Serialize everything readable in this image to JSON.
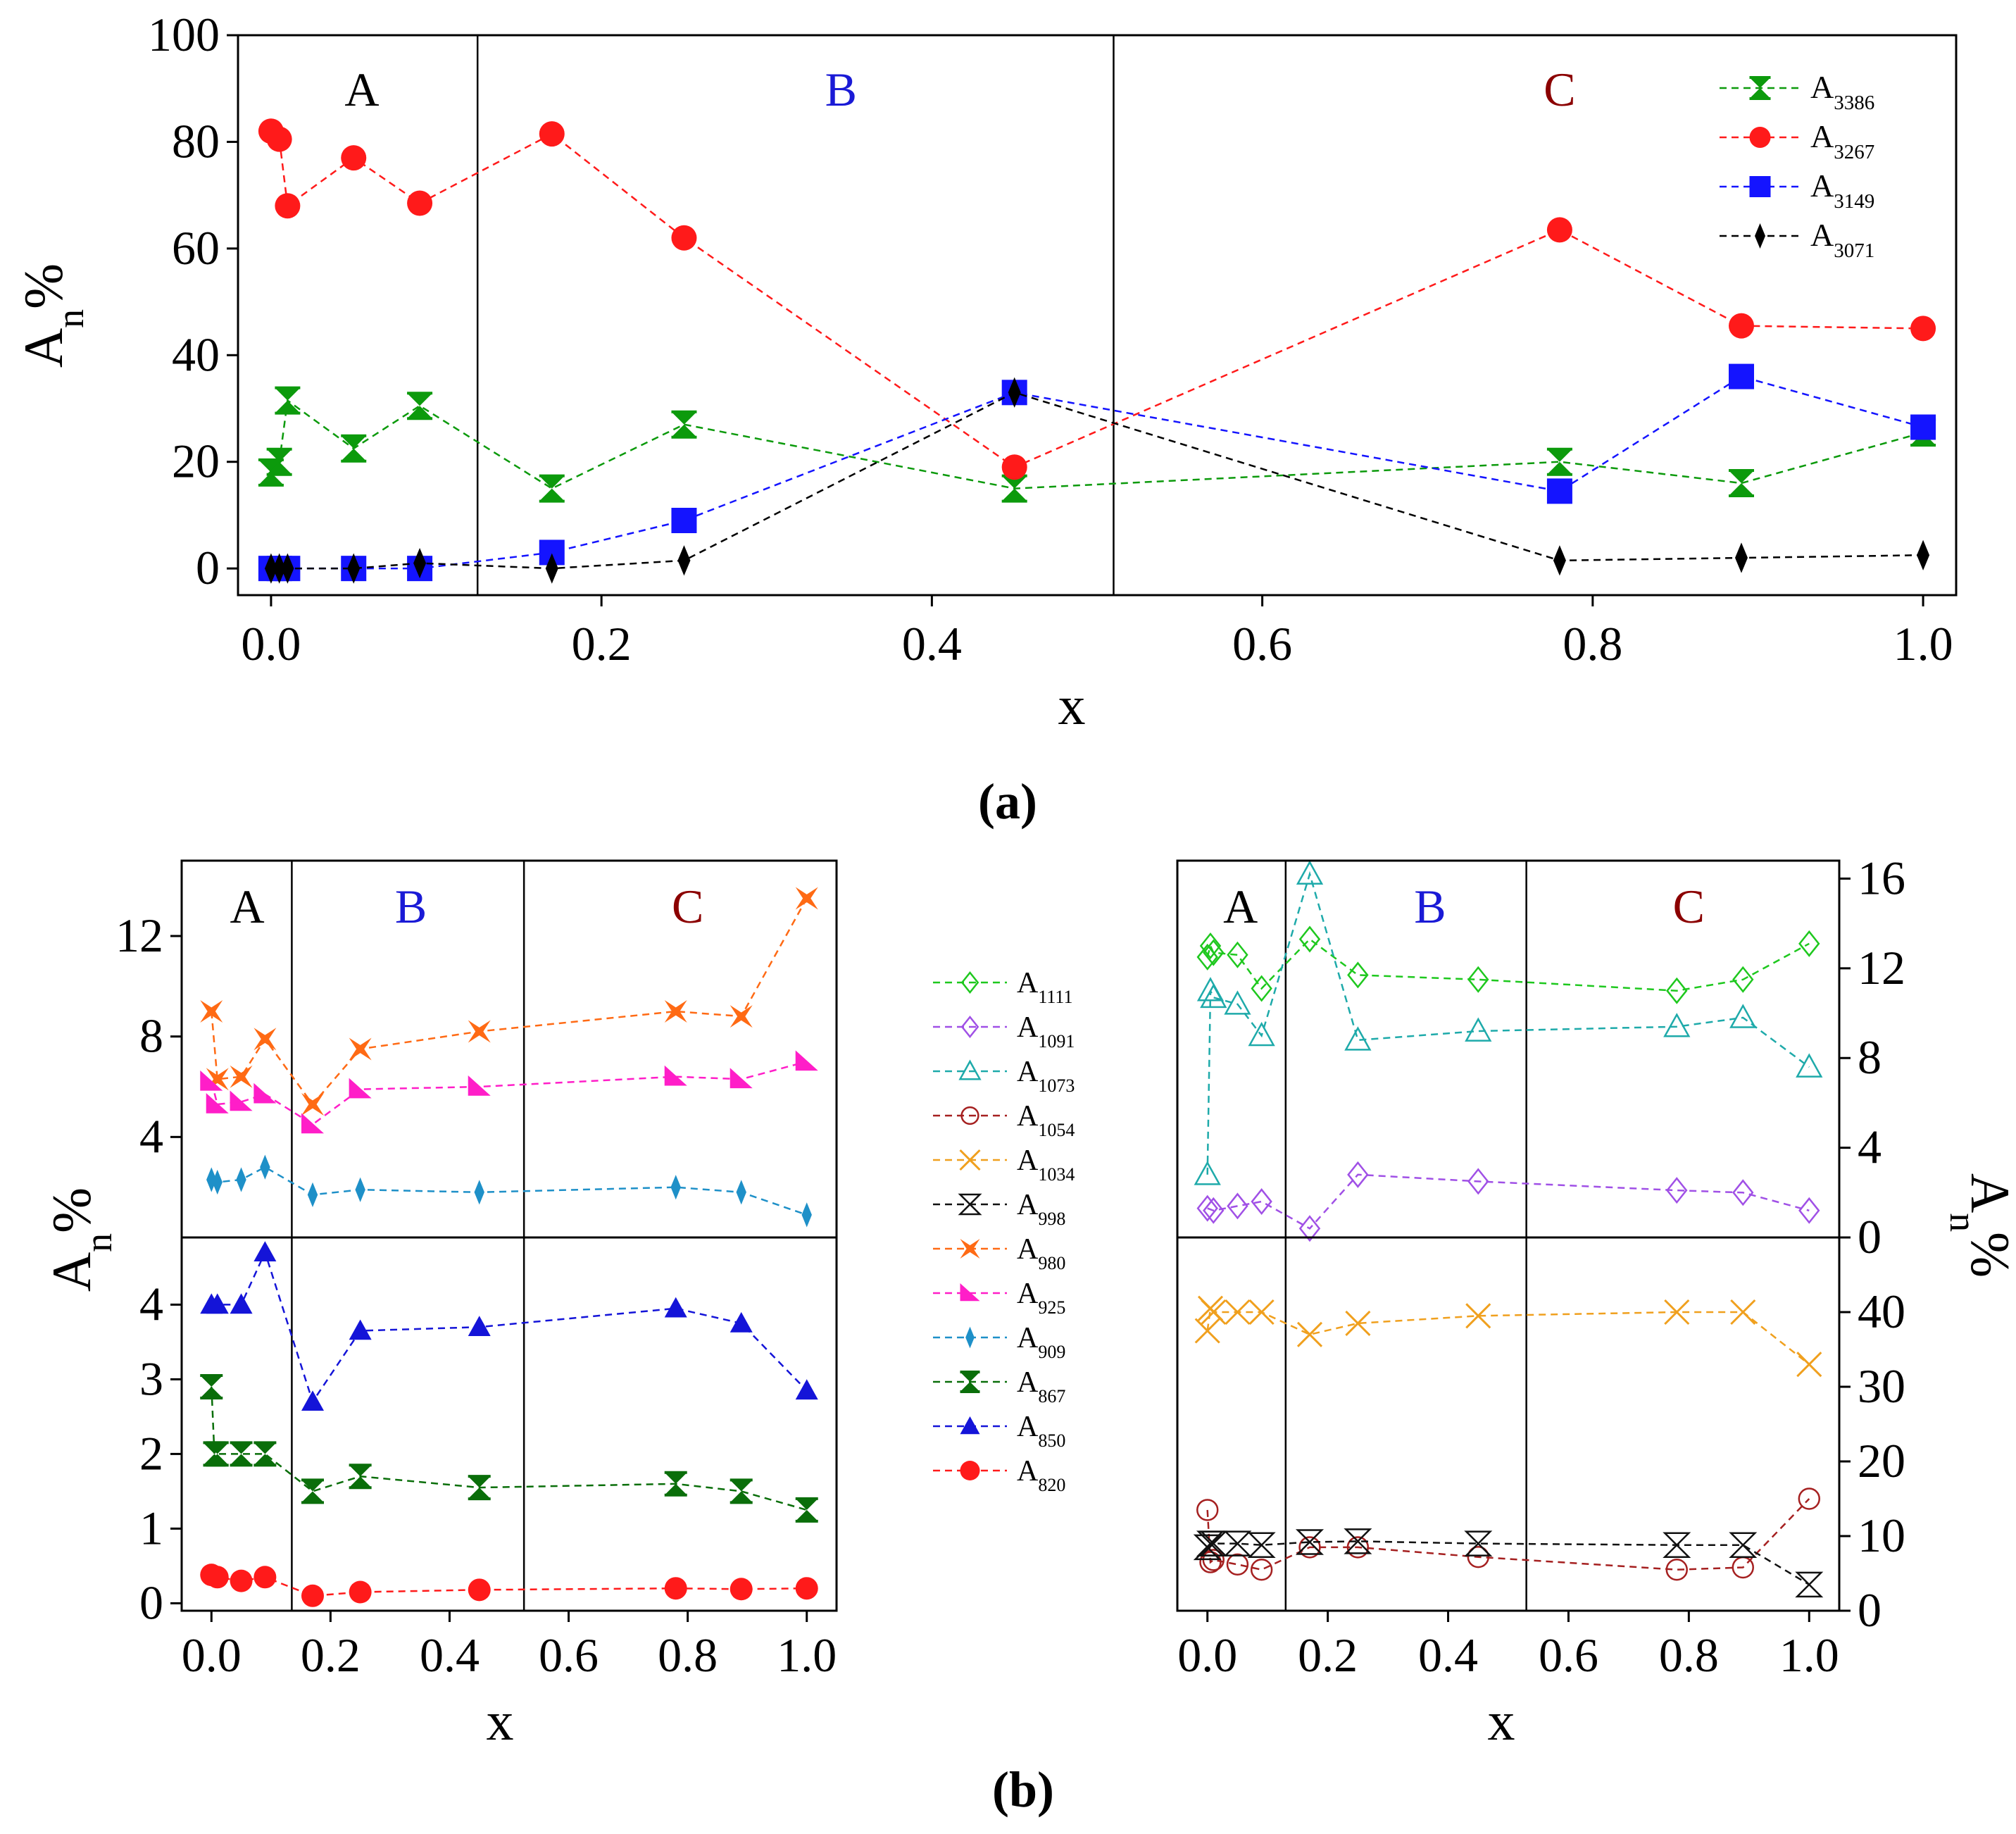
{
  "captions": {
    "a": "(a)",
    "b": "(b)"
  },
  "chart_data": [
    {
      "id": "a",
      "type": "line",
      "xlabel": "x",
      "ylabel": "A",
      "ylabel_sub": "n",
      "ylabel_suffix": "%",
      "xlim": [
        -0.02,
        1.02
      ],
      "ylim": [
        -5,
        100
      ],
      "xticks": [
        0.0,
        0.2,
        0.4,
        0.6,
        0.8,
        1.0
      ],
      "xtick_labels": [
        "0.0",
        "0.2",
        "0.4",
        "0.6",
        "0.8",
        "1.0"
      ],
      "yticks": [
        0,
        20,
        40,
        60,
        80,
        100
      ],
      "ytick_labels": [
        "0",
        "20",
        "40",
        "60",
        "80",
        "100"
      ],
      "dividers": [
        0.125,
        0.51
      ],
      "regions": [
        {
          "label": "A",
          "x": 0.055,
          "color": "#000000"
        },
        {
          "label": "B",
          "x": 0.345,
          "color": "#1a1ad6"
        },
        {
          "label": "C",
          "x": 0.78,
          "color": "#8b0000"
        }
      ],
      "legend_position": "top-right",
      "series": [
        {
          "name": "A",
          "sub": "3386",
          "color": "#0c9a0c",
          "marker": "hourglass",
          "x": [
            0.0,
            0.005,
            0.01,
            0.05,
            0.09,
            0.17,
            0.25,
            0.45,
            0.78,
            0.89,
            1.0
          ],
          "y": [
            18,
            20,
            31.5,
            22.5,
            30.5,
            15,
            27,
            15,
            20,
            16,
            25.5
          ]
        },
        {
          "name": "A",
          "sub": "3267",
          "color": "#ff1a1a",
          "marker": "circle",
          "x": [
            0.0,
            0.005,
            0.01,
            0.05,
            0.09,
            0.17,
            0.25,
            0.45,
            0.78,
            0.89,
            1.0
          ],
          "y": [
            82,
            80.5,
            68,
            77,
            68.5,
            81.5,
            62,
            19,
            63.5,
            45.5,
            45
          ]
        },
        {
          "name": "A",
          "sub": "3149",
          "color": "#1414ff",
          "marker": "square",
          "x": [
            0.0,
            0.005,
            0.01,
            0.05,
            0.09,
            0.17,
            0.25,
            0.45,
            0.78,
            0.89,
            1.0
          ],
          "y": [
            0,
            0,
            0,
            0,
            0,
            3,
            9,
            33,
            14.5,
            36,
            26.5
          ]
        },
        {
          "name": "A",
          "sub": "3071",
          "color": "#000000",
          "marker": "diamond",
          "x": [
            0.0,
            0.005,
            0.01,
            0.05,
            0.09,
            0.17,
            0.25,
            0.45,
            0.78,
            0.89,
            1.0
          ],
          "y": [
            0,
            0,
            0,
            0,
            1,
            0,
            1.5,
            33,
            1.5,
            2,
            2.5
          ]
        }
      ]
    },
    {
      "id": "b-left-top",
      "type": "line",
      "xlim": [
        -0.05,
        1.05
      ],
      "ylim": [
        0,
        15
      ],
      "yticks": [
        4,
        8,
        12
      ],
      "ytick_labels": [
        "4",
        "8",
        "12"
      ],
      "dividers": [
        0.135,
        0.525
      ],
      "regions": [
        {
          "label": "A",
          "x": 0.06,
          "color": "#000000"
        },
        {
          "label": "B",
          "x": 0.335,
          "color": "#1a1ad6"
        },
        {
          "label": "C",
          "x": 0.8,
          "color": "#8b0000"
        }
      ],
      "series": [
        {
          "name": "A",
          "sub": "980",
          "color": "#ff6a14",
          "marker": "bowtie-x",
          "x": [
            0.0,
            0.01,
            0.05,
            0.09,
            0.17,
            0.25,
            0.45,
            0.78,
            0.89,
            1.0
          ],
          "y": [
            9,
            6.3,
            6.4,
            7.9,
            5.3,
            7.5,
            8.2,
            9,
            8.8,
            13.5
          ]
        },
        {
          "name": "A",
          "sub": "925",
          "color": "#ff1ec8",
          "marker": "triangle-right",
          "x": [
            0.0,
            0.01,
            0.05,
            0.09,
            0.17,
            0.25,
            0.45,
            0.78,
            0.89,
            1.0
          ],
          "y": [
            6.2,
            5.3,
            5.4,
            5.7,
            4.5,
            5.9,
            6,
            6.4,
            6.3,
            7
          ]
        },
        {
          "name": "A",
          "sub": "909",
          "color": "#1e90c8",
          "marker": "diamond-thin",
          "x": [
            0.0,
            0.01,
            0.05,
            0.09,
            0.17,
            0.25,
            0.45,
            0.78,
            0.89,
            1.0
          ],
          "y": [
            2.3,
            2.2,
            2.3,
            2.8,
            1.7,
            1.9,
            1.8,
            2,
            1.8,
            0.9
          ]
        }
      ]
    },
    {
      "id": "b-left-bottom",
      "type": "line",
      "xlabel": "x",
      "ylabel": "A",
      "ylabel_sub": "n",
      "ylabel_suffix": "%",
      "xlim": [
        -0.05,
        1.05
      ],
      "ylim": [
        -0.1,
        4.9
      ],
      "xticks": [
        0.0,
        0.2,
        0.4,
        0.6,
        0.8,
        1.0
      ],
      "xtick_labels": [
        "0.0",
        "0.2",
        "0.4",
        "0.6",
        "0.8",
        "1.0"
      ],
      "yticks": [
        0,
        1,
        2,
        3,
        4
      ],
      "ytick_labels": [
        "0",
        "1",
        "2",
        "3",
        "4"
      ],
      "dividers": [
        0.135,
        0.525
      ],
      "series": [
        {
          "name": "A",
          "sub": "850",
          "color": "#1414d8",
          "marker": "triangle",
          "x": [
            0.0,
            0.01,
            0.05,
            0.09,
            0.17,
            0.25,
            0.45,
            0.78,
            0.89,
            1.0
          ],
          "y": [
            4,
            4,
            4,
            4.7,
            2.7,
            3.65,
            3.7,
            3.95,
            3.75,
            2.85
          ]
        },
        {
          "name": "A",
          "sub": "867",
          "color": "#0a6e0a",
          "marker": "hourglass",
          "x": [
            0.0,
            0.005,
            0.01,
            0.05,
            0.09,
            0.17,
            0.25,
            0.45,
            0.78,
            0.89,
            1.0
          ],
          "y": [
            2.9,
            2,
            2,
            2,
            2,
            1.5,
            1.7,
            1.55,
            1.6,
            1.5,
            1.25
          ]
        },
        {
          "name": "A",
          "sub": "820",
          "color": "#ff1a1a",
          "marker": "circle",
          "x": [
            0.0,
            0.01,
            0.05,
            0.09,
            0.17,
            0.25,
            0.45,
            0.78,
            0.89,
            1.0
          ],
          "y": [
            0.38,
            0.35,
            0.3,
            0.35,
            0.1,
            0.15,
            0.18,
            0.2,
            0.19,
            0.2
          ]
        }
      ]
    },
    {
      "id": "b-right-top",
      "type": "line",
      "ylabel": "A",
      "ylabel_sub": "n",
      "ylabel_suffix": "%",
      "xlim": [
        -0.05,
        1.05
      ],
      "ylim": [
        0,
        16.8
      ],
      "yticks": [
        0,
        4,
        8,
        12,
        16
      ],
      "ytick_labels": [
        "0",
        "4",
        "8",
        "12",
        "16"
      ],
      "dividers": [
        0.13,
        0.53
      ],
      "regions": [
        {
          "label": "A",
          "x": 0.055,
          "color": "#000000"
        },
        {
          "label": "B",
          "x": 0.37,
          "color": "#1a1ad6"
        },
        {
          "label": "C",
          "x": 0.8,
          "color": "#8b0000"
        }
      ],
      "series": [
        {
          "name": "A",
          "sub": "1111",
          "color": "#1ec81e",
          "marker": "open-diamond",
          "x": [
            0.0,
            0.005,
            0.01,
            0.05,
            0.09,
            0.17,
            0.25,
            0.45,
            0.78,
            0.89,
            1.0
          ],
          "y": [
            12.5,
            13,
            12.7,
            12.6,
            11.1,
            13.3,
            11.7,
            11.5,
            11,
            11.5,
            13.1
          ]
        },
        {
          "name": "A",
          "sub": "1091",
          "color": "#a050e6",
          "marker": "open-diamond",
          "x": [
            0.0,
            0.01,
            0.05,
            0.09,
            0.17,
            0.25,
            0.45,
            0.78,
            0.89,
            1.0
          ],
          "y": [
            1.3,
            1.2,
            1.4,
            1.6,
            0.4,
            2.8,
            2.5,
            2.1,
            2,
            1.2
          ]
        },
        {
          "name": "A",
          "sub": "1073",
          "color": "#1eaaaa",
          "marker": "open-triangle",
          "x": [
            0.0,
            0.005,
            0.01,
            0.05,
            0.09,
            0.17,
            0.25,
            0.45,
            0.78,
            0.89,
            1.0
          ],
          "y": [
            2.8,
            11,
            10.7,
            10.4,
            9,
            16.2,
            8.8,
            9.2,
            9.4,
            9.8,
            7.6
          ]
        }
      ]
    },
    {
      "id": "b-right-bottom",
      "type": "line",
      "xlabel": "x",
      "xlim": [
        -0.05,
        1.05
      ],
      "ylim": [
        0,
        50
      ],
      "xticks": [
        0.0,
        0.2,
        0.4,
        0.6,
        0.8,
        1.0
      ],
      "xtick_labels": [
        "0.0",
        "0.2",
        "0.4",
        "0.6",
        "0.8",
        "1.0"
      ],
      "yticks": [
        0,
        10,
        20,
        30,
        40
      ],
      "ytick_labels": [
        "0",
        "10",
        "20",
        "30",
        "40"
      ],
      "dividers": [
        0.13,
        0.53
      ],
      "series": [
        {
          "name": "A",
          "sub": "1034",
          "color": "#f0a01e",
          "marker": "x-cross",
          "x": [
            0.0,
            0.005,
            0.01,
            0.05,
            0.09,
            0.17,
            0.25,
            0.45,
            0.78,
            0.89,
            1.0
          ],
          "y": [
            37.5,
            40.5,
            40,
            40,
            40,
            37,
            38.5,
            39.5,
            40,
            40,
            33
          ]
        },
        {
          "name": "A",
          "sub": "1054",
          "color": "#a52020",
          "marker": "open-circle",
          "x": [
            0.0,
            0.005,
            0.01,
            0.05,
            0.09,
            0.17,
            0.25,
            0.45,
            0.78,
            0.89,
            1.0
          ],
          "y": [
            13.5,
            6.5,
            6.8,
            6.2,
            5.5,
            8.5,
            8.5,
            7.2,
            5.5,
            5.8,
            15
          ]
        },
        {
          "name": "A",
          "sub": "998",
          "color": "#111111",
          "marker": "open-hourglass",
          "x": [
            0.0,
            0.005,
            0.01,
            0.05,
            0.09,
            0.17,
            0.25,
            0.45,
            0.78,
            0.89,
            1.0
          ],
          "y": [
            8.5,
            9,
            9,
            9,
            8.8,
            9.2,
            9.3,
            9,
            8.8,
            8.8,
            3.5
          ]
        }
      ]
    }
  ],
  "legend_b_order": [
    "1111",
    "1091",
    "1073",
    "1054",
    "1034",
    "998",
    "980",
    "925",
    "909",
    "867",
    "850",
    "820"
  ]
}
